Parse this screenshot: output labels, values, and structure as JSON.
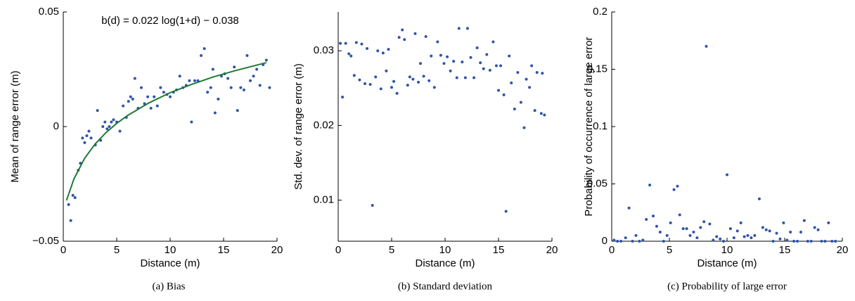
{
  "chart_data": [
    {
      "type": "scatter",
      "caption": "(a)  Bias",
      "annotation": "b(d) = 0.022 log(1+d) − 0.038",
      "xlabel": "Distance (m)",
      "ylabel": "Mean of range error (m)",
      "xlim": [
        0,
        20
      ],
      "xticks": [
        0,
        5,
        10,
        15,
        20
      ],
      "ylim": [
        -0.05,
        0.05
      ],
      "yticks": [
        {
          "value": -0.05,
          "label": "−0.05"
        },
        0,
        0.05
      ],
      "series": [
        {
          "type": "scatter",
          "color": "#2f54a8",
          "x": [
            0.5,
            0.7,
            0.9,
            1.1,
            1.4,
            1.6,
            1.8,
            2.0,
            2.2,
            2.4,
            2.6,
            3.0,
            3.2,
            3.5,
            3.7,
            3.9,
            4.1,
            4.3,
            4.5,
            4.7,
            5.0,
            5.3,
            5.6,
            5.9,
            6.1,
            6.3,
            6.5,
            6.7,
            7.0,
            7.3,
            7.6,
            7.9,
            8.2,
            8.5,
            8.8,
            9.1,
            9.4,
            9.7,
            10.0,
            10.3,
            10.6,
            10.9,
            11.2,
            11.5,
            11.8,
            12.0,
            12.3,
            12.6,
            12.9,
            13.2,
            13.5,
            13.8,
            14.0,
            14.2,
            14.5,
            14.8,
            15.1,
            15.4,
            15.7,
            16.0,
            16.3,
            16.6,
            16.9,
            17.2,
            17.5,
            17.8,
            18.1,
            18.4,
            18.7,
            19.0,
            19.3
          ],
          "values": [
            -0.034,
            -0.041,
            -0.03,
            -0.031,
            -0.019,
            -0.016,
            -0.005,
            -0.007,
            -0.004,
            -0.002,
            -0.005,
            -0.008,
            0.007,
            -0.006,
            0.0,
            0.002,
            -0.001,
            0.0,
            0.002,
            0.003,
            0.002,
            -0.002,
            0.009,
            0.004,
            0.011,
            0.013,
            0.012,
            0.021,
            0.008,
            0.017,
            0.01,
            0.013,
            0.008,
            0.013,
            0.009,
            0.017,
            0.015,
            0.014,
            0.013,
            0.015,
            0.016,
            0.022,
            0.017,
            0.018,
            0.02,
            0.002,
            0.02,
            0.02,
            0.031,
            0.034,
            0.015,
            0.017,
            0.025,
            0.006,
            0.012,
            0.022,
            0.023,
            0.021,
            0.017,
            0.026,
            0.007,
            0.017,
            0.016,
            0.031,
            0.02,
            0.022,
            0.025,
            0.018,
            0.027,
            0.029,
            0.017
          ]
        },
        {
          "type": "line",
          "color": "#1f7a35",
          "x": [
            0.3,
            1,
            2,
            3,
            4,
            5,
            6,
            8,
            10,
            12,
            14,
            16,
            19
          ],
          "values": [
            -0.0322,
            -0.0228,
            -0.0138,
            -0.0075,
            -0.0026,
            0.0014,
            0.0048,
            0.0103,
            0.0148,
            0.0184,
            0.0216,
            0.0243,
            0.0279
          ]
        }
      ]
    },
    {
      "type": "scatter",
      "caption": "(b)  Standard deviation",
      "xlabel": "Distance (m)",
      "ylabel": "Std. dev. of range error (m)",
      "xlim": [
        0,
        20
      ],
      "xticks": [
        0,
        5,
        10,
        15,
        20
      ],
      "ylim": [
        0.0045,
        0.0352
      ],
      "yticks": [
        0.01,
        0.02,
        0.03
      ],
      "series": [
        {
          "type": "scatter",
          "color": "#2f54a8",
          "x": [
            0.2,
            0.4,
            0.7,
            1.0,
            1.2,
            1.5,
            1.7,
            2.0,
            2.2,
            2.5,
            2.7,
            3.0,
            3.2,
            3.5,
            3.7,
            4.0,
            4.2,
            4.5,
            4.7,
            5.0,
            5.2,
            5.5,
            5.7,
            6.0,
            6.2,
            6.5,
            6.7,
            7.0,
            7.2,
            7.5,
            7.7,
            8.0,
            8.2,
            8.5,
            8.7,
            9.0,
            9.3,
            9.6,
            9.9,
            10.2,
            10.5,
            10.8,
            11.1,
            11.3,
            11.6,
            11.9,
            12.1,
            12.4,
            12.7,
            13.0,
            13.3,
            13.6,
            13.9,
            14.2,
            14.5,
            14.8,
            15.0,
            15.2,
            15.5,
            15.7,
            16.0,
            16.2,
            16.5,
            16.8,
            17.1,
            17.4,
            17.6,
            17.9,
            18.1,
            18.4,
            18.6,
            19.0,
            19.1,
            19.3
          ],
          "values": [
            0.031,
            0.0238,
            0.031,
            0.0296,
            0.0293,
            0.0267,
            0.0311,
            0.0261,
            0.0309,
            0.0256,
            0.0303,
            0.0255,
            0.0093,
            0.0265,
            0.03,
            0.0249,
            0.0297,
            0.0273,
            0.0302,
            0.0251,
            0.0259,
            0.0243,
            0.0318,
            0.0328,
            0.0315,
            0.0254,
            0.0265,
            0.0262,
            0.0323,
            0.0258,
            0.0283,
            0.0266,
            0.0319,
            0.026,
            0.0293,
            0.0251,
            0.0312,
            0.0294,
            0.0283,
            0.0292,
            0.0273,
            0.0286,
            0.0264,
            0.033,
            0.0285,
            0.0264,
            0.033,
            0.0291,
            0.0264,
            0.0304,
            0.0284,
            0.0276,
            0.0295,
            0.0274,
            0.0312,
            0.028,
            0.0247,
            0.028,
            0.0241,
            0.0085,
            0.0293,
            0.0257,
            0.0222,
            0.0271,
            0.0231,
            0.0197,
            0.0262,
            0.0251,
            0.028,
            0.022,
            0.0271,
            0.0216,
            0.027,
            0.0214
          ]
        }
      ]
    },
    {
      "type": "scatter",
      "caption": "(c)  Probability of large error",
      "xlabel": "Distance (m)",
      "ylabel": "Probability of occurrence of large error",
      "xlim": [
        0,
        20
      ],
      "xticks": [
        0,
        5,
        10,
        15,
        20
      ],
      "ylim": [
        0,
        0.2
      ],
      "yticks": [
        0,
        0.05,
        0.1,
        0.15,
        0.2
      ],
      "series": [
        {
          "type": "scatter",
          "color": "#2f54a8",
          "x": [
            0.2,
            0.5,
            0.8,
            1.2,
            1.5,
            1.8,
            2.1,
            2.4,
            2.7,
            3.0,
            3.3,
            3.6,
            3.9,
            4.2,
            4.5,
            4.8,
            5.1,
            5.4,
            5.7,
            5.9,
            6.2,
            6.5,
            6.8,
            7.1,
            7.4,
            7.7,
            8.0,
            8.2,
            8.5,
            8.8,
            9.1,
            9.4,
            9.7,
            10.0,
            10.3,
            10.6,
            10.9,
            11.2,
            11.5,
            11.8,
            12.1,
            12.4,
            12.8,
            13.1,
            13.4,
            13.7,
            14.0,
            14.3,
            14.6,
            14.9,
            15.2,
            15.5,
            15.8,
            16.1,
            16.4,
            16.7,
            17.0,
            17.3,
            17.6,
            17.9,
            18.2,
            18.5,
            18.8,
            19.1,
            19.4
          ],
          "values": [
            0.001,
            0.0,
            0.0,
            0.003,
            0.029,
            0.0,
            0.005,
            0.0,
            0.001,
            0.019,
            0.049,
            0.022,
            0.013,
            0.008,
            0.0,
            0.005,
            0.016,
            0.045,
            0.048,
            0.023,
            0.011,
            0.011,
            0.005,
            0.008,
            0.003,
            0.012,
            0.017,
            0.17,
            0.015,
            0.001,
            0.004,
            0.002,
            0.0,
            0.058,
            0.011,
            0.003,
            0.009,
            0.016,
            0.004,
            0.005,
            0.003,
            0.005,
            0.037,
            0.012,
            0.01,
            0.009,
            0.0,
            0.007,
            0.002,
            0.016,
            0.001,
            0.008,
            0.0,
            0.0,
            0.008,
            0.018,
            0.0,
            0.0,
            0.012,
            0.01,
            0.0,
            0.0,
            0.016,
            0.0,
            0.0
          ]
        }
      ]
    }
  ]
}
